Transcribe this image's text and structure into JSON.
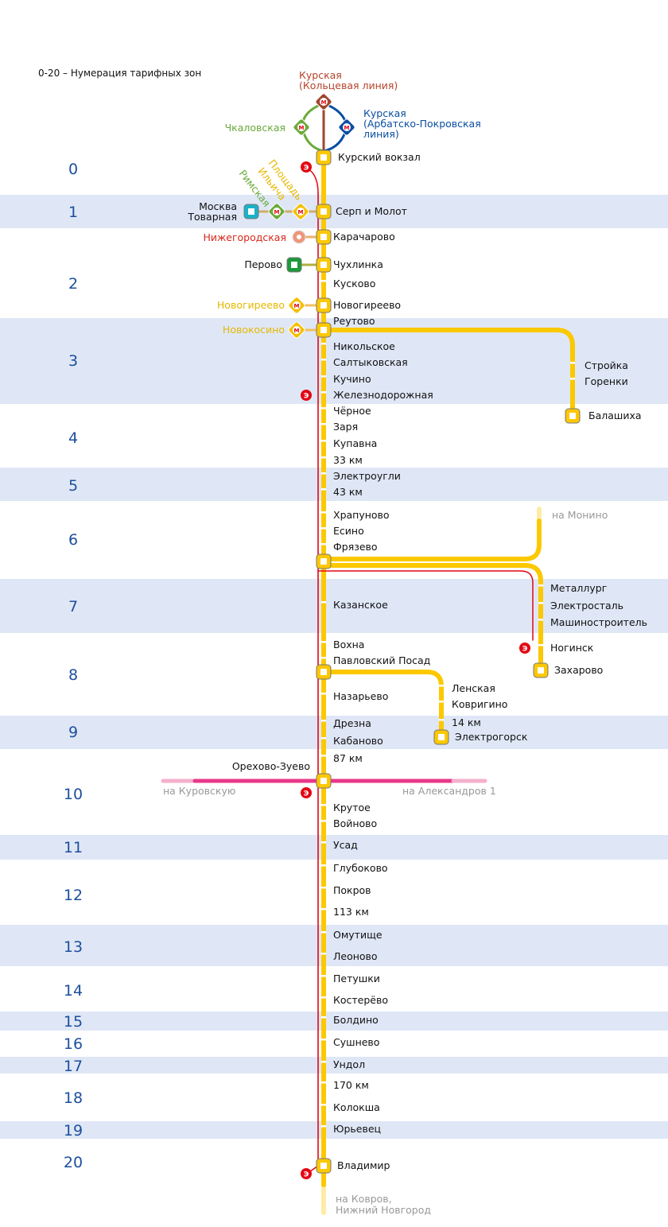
{
  "legend": "0-20 – Нумерация тарифных зон",
  "colors": {
    "main_line": "#fcc800",
    "express_line": "#e30613",
    "zone_band": "#dfe7f6",
    "zone_number": "#1d4f9c",
    "pink_line": "#e8388a",
    "ring_line": "#a0452e",
    "arbat_line": "#0a4ea2",
    "green_line": "#6aab3a",
    "mcc": "#1ab2c8",
    "nekrasov": "#f0957a",
    "perovo": "#1a9a3a"
  },
  "zones": [
    "0",
    "1",
    "2",
    "3",
    "4",
    "5",
    "6",
    "7",
    "8",
    "9",
    "10",
    "11",
    "12",
    "13",
    "14",
    "15",
    "16",
    "17",
    "18",
    "19",
    "20"
  ],
  "metro": {
    "kurskaya_ring": "Курская\n(Кольцевая линия)",
    "kurskaya_ring_lines": [
      "Курская",
      "(Кольцевая линия)"
    ],
    "kurskaya_arbat_lines": [
      "Курская",
      "(Арбатско-Покровская",
      "линия)"
    ],
    "chkalovskaya": "Чкаловская",
    "rimskaya": "Римская",
    "ploshchad_ilyicha_lines": [
      "Площадь",
      "Ильича"
    ],
    "moskva_tovarnaya_lines": [
      "Москва",
      "Товарная"
    ],
    "nizhegorodskaya": "Нижегородская",
    "perovo": "Перово",
    "novogireevo": "Новогиреево",
    "novokosino": "Новокосино",
    "metro_icon": "М",
    "express_icon": "Э"
  },
  "main_line": [
    "Курский вокзал",
    "Серп и Молот",
    "Карачарово",
    "Чухлинка",
    "Кусково",
    "Новогиреево",
    "Реутово",
    "Никольское",
    "Салтыковская",
    "Кучино",
    "Железнодорожная",
    "Чёрное",
    "Заря",
    "Купавна",
    "33 км",
    "Электроугли",
    "43 км",
    "Храпуново",
    "Есино",
    "Фрязево",
    "Казанское",
    "Вохна",
    "Павловский Посад",
    "Назарьево",
    "Дрезна",
    "Кабаново",
    "87 км",
    "Орехово-Зуево",
    "Крутое",
    "Войново",
    "Усад",
    "Глубоково",
    "Покров",
    "113 км",
    "Омутище",
    "Леоново",
    "Петушки",
    "Костерёво",
    "Болдино",
    "Сушнево",
    "Ундол",
    "170 км",
    "Колокша",
    "Юрьевец",
    "Владимир"
  ],
  "balashikha_branch": [
    "Стройка",
    "Горенки",
    "Балашиха"
  ],
  "monino_branch": {
    "direction": "на Монино"
  },
  "zakharovo_branch": [
    "Металлург",
    "Электросталь",
    "Машиностроитель",
    "Ногинск",
    "Захарово"
  ],
  "elektrogorsk_branch": [
    "Ленская",
    "Ковригино",
    "14 км",
    "Электрогорск"
  ],
  "directions": {
    "kurovskaya": "на Куровскую",
    "aleksandrov": "на Александров 1",
    "kovrov_lines": [
      "на Ковров,",
      "Нижний Новгород"
    ]
  }
}
